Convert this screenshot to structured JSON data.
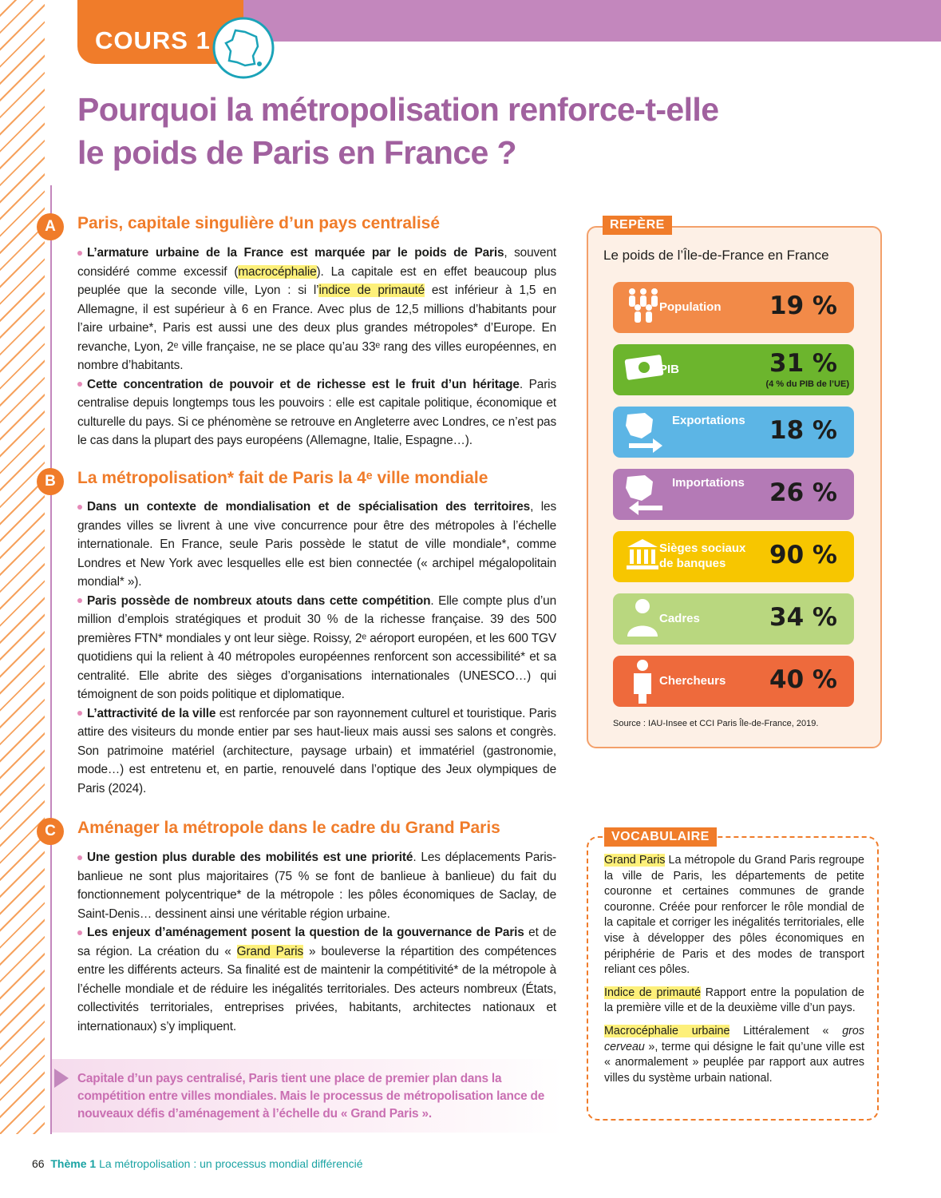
{
  "header": {
    "tab": "COURS 1",
    "title_lines": [
      "Pourquoi la métropolisation renforce-t-elle",
      "le poids de Paris en France ?"
    ]
  },
  "sections": [
    {
      "letter": "A",
      "heading": "Paris, capitale singulière d’un pays centralisé",
      "paragraphs": [
        [
          {
            "b": "L’armature urbaine de la France est marquée par le poids de Paris"
          },
          {
            "t": ", souvent considéré comme excessif ("
          },
          {
            "h": "macrocéphalie"
          },
          {
            "t": "). La capitale est en effet beaucoup plus peuplée que la seconde ville, Lyon : si l’"
          },
          {
            "h": "indice de primauté"
          },
          {
            "t": " est inférieur à 1,5 en Allemagne, il est supérieur à 6 en France. Avec plus de 12,5 millions d’habitants pour l’aire urbaine*, Paris est aussi une des deux plus grandes métropoles* d’Europe. En revanche, Lyon, 2ᵉ ville française, ne se place qu’au 33ᵉ rang des villes européennes, en nombre d’habitants."
          }
        ],
        [
          {
            "b": "Cette concentration de pouvoir et de richesse est le fruit d’un héritage"
          },
          {
            "t": ". Paris centralise depuis longtemps tous les pouvoirs : elle est capitale politique, économique et culturelle du pays. Si ce phénomène se retrouve en Angleterre avec Londres, ce n’est pas le cas dans la plupart des pays européens (Allemagne, Italie, Espagne…)."
          }
        ]
      ]
    },
    {
      "letter": "B",
      "heading": "La métropolisation* fait de Paris la 4ᵉ ville mondiale",
      "paragraphs": [
        [
          {
            "b": "Dans un contexte de mondialisation et de spécialisation des territoires"
          },
          {
            "t": ", les grandes villes se livrent à une vive concurrence pour être des métropoles à l’échelle internationale. En France, seule Paris possède le statut de ville mondiale*, comme Londres et New York avec lesquelles elle est bien connectée (« archipel mégalopolitain mondial* »)."
          }
        ],
        [
          {
            "b": "Paris possède de nombreux atouts dans cette compétition"
          },
          {
            "t": ". Elle compte plus d’un million d’emplois stratégiques et produit 30 % de la richesse française. 39 des 500 premières FTN* mondiales y ont leur siège. Roissy, 2ᵉ aéroport européen, et les 600 TGV quotidiens qui la relient à 40 métropoles européennes renforcent son accessibilité* et sa centralité. Elle abrite des sièges d’organisations internationales (UNESCO…) qui témoignent de son poids politique et diplomatique."
          }
        ],
        [
          {
            "b": "L’attractivité de la ville"
          },
          {
            "t": " est renforcée par son rayonnement culturel et touristique. Paris attire des visiteurs du monde entier par ses haut-lieux mais aussi ses salons et congrès. Son patrimoine matériel (architecture, paysage urbain) et immatériel (gastronomie, mode…) est entretenu et, en partie, renouvelé dans l’optique des Jeux olympiques de Paris (2024)."
          }
        ]
      ]
    },
    {
      "letter": "C",
      "heading": "Aménager la métropole dans le cadre du Grand Paris",
      "paragraphs": [
        [
          {
            "b": "Une gestion plus durable des mobilités est une priorité"
          },
          {
            "t": ". Les déplacements Paris-banlieue ne sont plus majoritaires (75 % se font de banlieue à banlieue) du fait du fonctionnement polycentrique* de la métropole : les pôles économiques de Saclay, de Saint-Denis… dessinent ainsi une véritable région urbaine."
          }
        ],
        [
          {
            "b": "Les enjeux d’aménagement posent la question de la gouvernance de Paris"
          },
          {
            "t": " et de sa région. La création du « "
          },
          {
            "h": "Grand Paris"
          },
          {
            "t": " » bouleverse la répartition des compétences entre les différents acteurs. Sa finalité est de maintenir la compétitivité* de la métropole à l’échelle mondiale et de réduire les inégalités territoriales. Des acteurs nombreux (États, collectivités territoriales, entreprises privées, habitants, architectes nationaux et internationaux) s’y impliquent."
          }
        ]
      ]
    }
  ],
  "conclusion": "Capitale d’un pays centralisé, Paris tient une place de premier plan dans la compétition entre villes mondiales. Mais le processus de métropolisation lance de nouveaux défis d’aménagement à l’échelle du « Grand Paris ».",
  "repere": {
    "tab": "REPÈRE",
    "subtitle": "Le poids de l’Île-de-France en France",
    "items": [
      {
        "label": "Population",
        "value": "19 %",
        "color": "#f28a48"
      },
      {
        "label": "PIB",
        "value": "31 %",
        "note": "(4 % du PIB de l’UE)",
        "color": "#6cb52d"
      },
      {
        "label": "Exportations",
        "value": "18 %",
        "color": "#5cb5e5"
      },
      {
        "label": "Importations",
        "value": "26 %",
        "color": "#b47ab6"
      },
      {
        "label": "Sièges sociaux de banques",
        "value": "90 %",
        "color": "#f7c600"
      },
      {
        "label": "Cadres",
        "value": "34 %",
        "color": "#b9d77f"
      },
      {
        "label": "Chercheurs",
        "value": "40 %",
        "color": "#ee6a3c"
      }
    ],
    "source": "Source : IAU-Insee et CCI Paris Île-de-France, 2019."
  },
  "vocabulary": {
    "tab": "VOCABULAIRE",
    "entries": [
      [
        {
          "h": "Grand Paris"
        },
        {
          "t": " La métropole du Grand Paris regroupe la ville de Paris, les départements de petite couronne et certaines communes de grande couronne. Créée pour renforcer le rôle mondial de la capitale et corriger les inégalités territoriales, elle vise à développer des pôles économiques en périphérie de Paris et des modes de transport reliant ces pôles."
        }
      ],
      [
        {
          "h": "Indice de primauté"
        },
        {
          "t": " Rapport entre la population de la première ville et de la deuxième ville d’un pays."
        }
      ],
      [
        {
          "h": "Macrocéphalie urbaine"
        },
        {
          "t": " Littéralement « "
        },
        {
          "i": "gros cerveau"
        },
        {
          "t": " », terme qui désigne le fait qu’une ville est « anormalement » peuplée par rapport aux autres villes du système urbain national."
        }
      ]
    ]
  },
  "footer": {
    "page": "66",
    "theme": "Thème 1",
    "text": "La métropolisation : un processus mondial différencié"
  }
}
